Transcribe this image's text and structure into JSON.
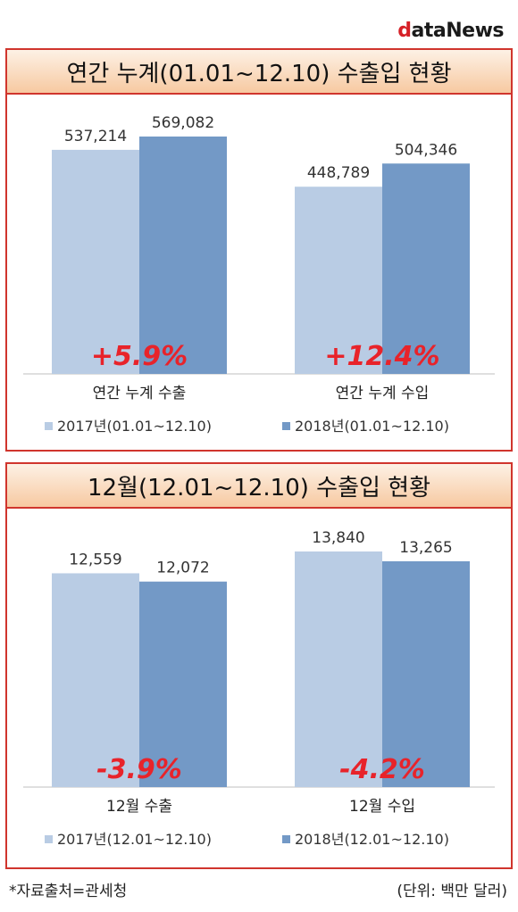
{
  "logo": {
    "first": "d",
    "rest": "ataNews"
  },
  "colors": {
    "y2017": "#b9cce4",
    "y2018": "#7399c6",
    "accent": "#d0352d",
    "change": "#e8232a"
  },
  "chart_data": [
    {
      "type": "bar",
      "title": "연간 누계(01.01~12.10) 수출입 현황",
      "categories": [
        "연간 누계 수출",
        "연간 누계 수입"
      ],
      "series": [
        {
          "name": "2017년(01.01~12.10)",
          "values": [
            537214,
            448789
          ],
          "labels": [
            "537,214",
            "448,789"
          ]
        },
        {
          "name": "2018년(01.01~12.10)",
          "values": [
            569082,
            504346
          ],
          "labels": [
            "569,082",
            "504,346"
          ]
        }
      ],
      "changes": [
        "+5.9%",
        "+12.4%"
      ],
      "ylim": [
        0,
        569082
      ]
    },
    {
      "type": "bar",
      "title": "12월(12.01~12.10) 수출입 현황",
      "categories": [
        "12월 수출",
        "12월 수입"
      ],
      "series": [
        {
          "name": "2017년(12.01~12.10)",
          "values": [
            12559,
            13840
          ],
          "labels": [
            "12,559",
            "13,840"
          ]
        },
        {
          "name": "2018년(12.01~12.10)",
          "values": [
            12072,
            13265
          ],
          "labels": [
            "12,072",
            "13,265"
          ]
        }
      ],
      "changes": [
        "-3.9%",
        "-4.2%"
      ],
      "ylim": [
        0,
        13840
      ]
    }
  ],
  "footer": {
    "source": "*자료출처=관세청",
    "unit": "(단위: 백만 달러)"
  }
}
